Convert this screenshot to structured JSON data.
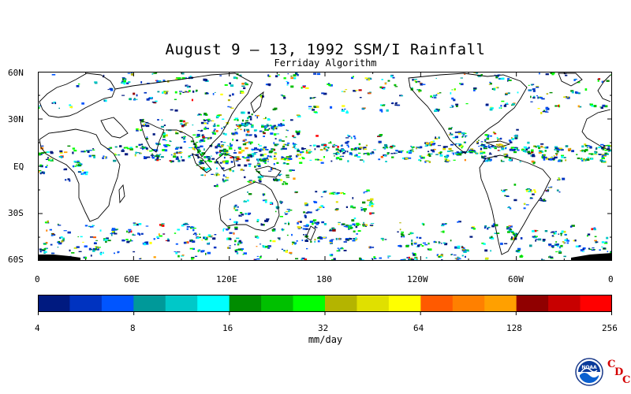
{
  "title": "August 9 – 13, 1992 SSM/I Rainfall",
  "subtitle": "Ferriday Algorithm",
  "map": {
    "lat_labels": [
      "60N",
      "30N",
      "EQ",
      "30S",
      "60S"
    ],
    "lon_labels": [
      "0",
      "60E",
      "120E",
      "180",
      "120W",
      "60W",
      "0"
    ],
    "lat_range": [
      -60,
      60
    ],
    "lon_range": [
      0,
      360
    ],
    "background": "#ffffff"
  },
  "colorbar": {
    "units": "mm/day",
    "tick_labels": [
      "4",
      "8",
      "16",
      "32",
      "64",
      "128",
      "256"
    ],
    "colors": [
      "#001a80",
      "#0033c0",
      "#0055ff",
      "#009999",
      "#00c8c8",
      "#00ffff",
      "#008c00",
      "#00c000",
      "#00ff00",
      "#b4b400",
      "#e0e000",
      "#ffff00",
      "#ff5a00",
      "#ff8000",
      "#ffa000",
      "#900000",
      "#c80000",
      "#ff0000"
    ]
  },
  "logo": {
    "name": "NOAA",
    "letters": [
      "C",
      "D",
      "C"
    ]
  }
}
